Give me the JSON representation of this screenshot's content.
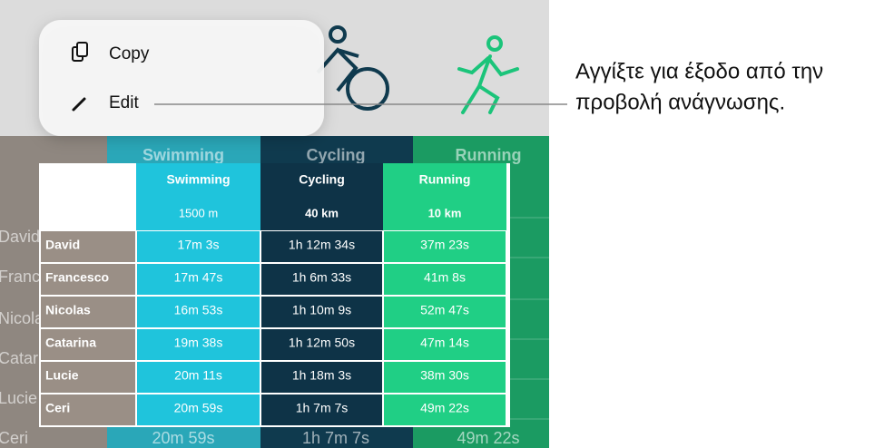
{
  "menu": {
    "items": [
      "Copy",
      "Edit"
    ]
  },
  "callout": {
    "lines": [
      "Αγγίξτε για έξοδο από την",
      "προβολή ανάγνωσης."
    ]
  },
  "background_table": {
    "columns": [
      "Swimming",
      "Cycling",
      "Running"
    ],
    "names": [
      "David",
      "Francesco",
      "Nicolas",
      "Catarina",
      "Lucie",
      "Ceri"
    ],
    "last_row": [
      "20m 59s",
      "1h 7m 7s",
      "49m 22s"
    ]
  },
  "table": {
    "columns": [
      "Swimming",
      "Cycling",
      "Running"
    ],
    "distances": [
      "1500 m",
      "40 km",
      "10 km"
    ],
    "rows": [
      [
        "David",
        "17m 3s",
        "1h 12m 34s",
        "37m 23s"
      ],
      [
        "Francesco",
        "17m 47s",
        "1h 6m 33s",
        "41m 8s"
      ],
      [
        "Nicolas",
        "16m 53s",
        "1h 10m 9s",
        "52m 47s"
      ],
      [
        "Catarina",
        "19m 38s",
        "1h 12m 50s",
        "47m 14s"
      ],
      [
        "Lucie",
        "20m 11s",
        "1h 18m 3s",
        "38m 30s"
      ],
      [
        "Ceri",
        "20m 59s",
        "1h 7m 7s",
        "49m 22s"
      ]
    ]
  }
}
